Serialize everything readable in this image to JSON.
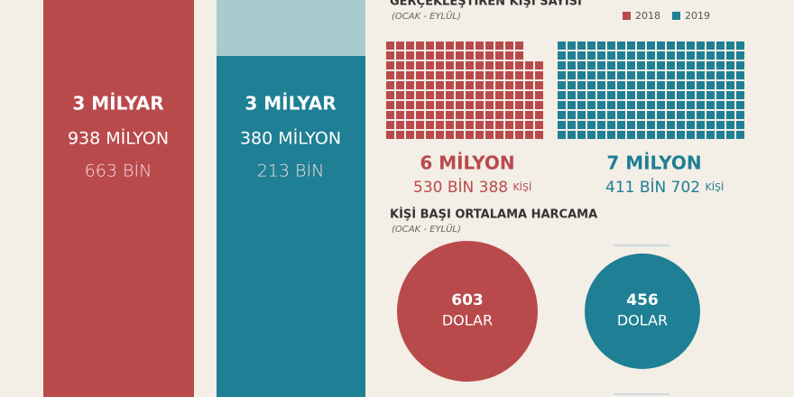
{
  "revenue": {
    "2018": {
      "line1": "3 MİLYAR",
      "line2": "938 MİLYON",
      "line3": "663 BİN"
    },
    "2019": {
      "line1": "3 MİLYAR",
      "line2": "380 MİLYON",
      "line3": "213 BİN"
    }
  },
  "visitors": {
    "title": "GERÇEKLEŞTİREN KİŞİ SAYISI",
    "period": "(OCAK - EYLÜL)",
    "legend": [
      "2018",
      "2019"
    ],
    "2018": {
      "main": "6 MİLYON",
      "detail": "530 BİN 388",
      "unit": "KİŞİ"
    },
    "2019": {
      "main": "7 MİLYON",
      "detail": "411 BİN 702",
      "unit": "KİŞİ"
    }
  },
  "spending": {
    "title": "KİŞİ BAŞI ORTALAMA HARCAMA",
    "period": "(OCAK - EYLÜL)",
    "2018": {
      "amount": "603",
      "unit": "DOLAR"
    },
    "2019": {
      "amount": "456",
      "unit": "DOLAR"
    }
  }
}
